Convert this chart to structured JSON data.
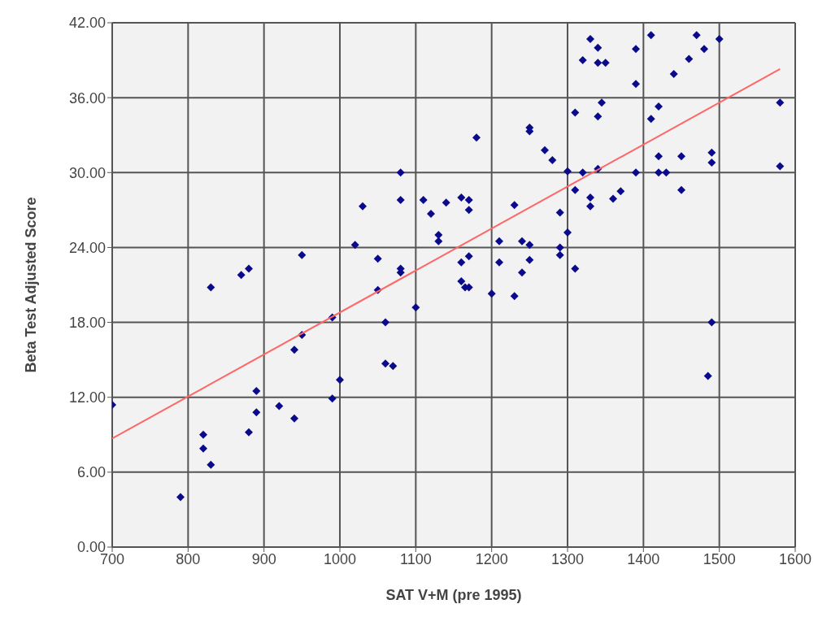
{
  "chart_data": {
    "type": "scatter",
    "xlabel": "SAT V+M (pre 1995)",
    "ylabel": "Beta Test Adjusted Score",
    "xlim": [
      700,
      1600
    ],
    "xticks": [
      700,
      800,
      900,
      1000,
      1100,
      1200,
      1300,
      1400,
      1500,
      1600
    ],
    "ylim": [
      0,
      42
    ],
    "yticks": [
      {
        "value": 0,
        "label": "0.00"
      },
      {
        "value": 6,
        "label": "6.00"
      },
      {
        "value": 12,
        "label": "12.00"
      },
      {
        "value": 18,
        "label": "18.00"
      },
      {
        "value": 24,
        "label": "24.00"
      },
      {
        "value": 30,
        "label": "30.00"
      },
      {
        "value": 36,
        "label": "36.00"
      },
      {
        "value": 42,
        "label": "42.00"
      }
    ],
    "grid": true,
    "legend": false,
    "marker": "diamond",
    "series": [
      {
        "color": "#0a0a8c",
        "x": [
          700,
          790,
          820,
          820,
          830,
          830,
          870,
          880,
          880,
          890,
          890,
          920,
          940,
          940,
          950,
          950,
          990,
          990,
          1000,
          1020,
          1030,
          1050,
          1050,
          1060,
          1060,
          1070,
          1080,
          1080,
          1080,
          1080,
          1100,
          1110,
          1120,
          1130,
          1130,
          1140,
          1160,
          1160,
          1160,
          1165,
          1170,
          1170,
          1170,
          1170,
          1180,
          1200,
          1210,
          1210,
          1230,
          1230,
          1240,
          1240,
          1250,
          1250,
          1250,
          1250,
          1270,
          1280,
          1290,
          1290,
          1290,
          1300,
          1300,
          1310,
          1310,
          1310,
          1320,
          1320,
          1330,
          1330,
          1330,
          1340,
          1340,
          1340,
          1340,
          1345,
          1350,
          1360,
          1370,
          1390,
          1390,
          1390,
          1410,
          1410,
          1420,
          1420,
          1420,
          1430,
          1440,
          1450,
          1450,
          1460,
          1470,
          1480,
          1490,
          1490,
          1490,
          1485,
          1500,
          1580,
          1580
        ],
        "values": [
          11.4,
          4.0,
          9.0,
          7.9,
          6.6,
          20.8,
          21.8,
          22.3,
          9.2,
          10.8,
          12.5,
          11.3,
          10.3,
          15.8,
          17.0,
          23.4,
          11.9,
          18.4,
          13.4,
          24.2,
          27.3,
          20.6,
          23.1,
          18.0,
          14.7,
          14.5,
          30.0,
          27.8,
          22.0,
          22.3,
          19.2,
          27.8,
          26.7,
          24.5,
          25.0,
          27.6,
          28.0,
          22.8,
          21.3,
          20.8,
          27.8,
          27.0,
          23.3,
          20.8,
          32.8,
          20.3,
          24.5,
          22.8,
          27.4,
          20.1,
          24.5,
          22.0,
          33.6,
          33.3,
          24.2,
          23.0,
          31.8,
          31.0,
          26.8,
          24.0,
          23.4,
          30.1,
          25.2,
          34.8,
          28.6,
          22.3,
          39.0,
          30.0,
          40.7,
          28.0,
          27.3,
          40.0,
          38.8,
          34.5,
          30.3,
          35.6,
          38.8,
          27.9,
          28.5,
          39.9,
          37.1,
          30.0,
          41.0,
          34.3,
          35.3,
          31.3,
          30.0,
          30.0,
          37.9,
          31.3,
          28.6,
          39.1,
          41.0,
          39.9,
          31.6,
          30.8,
          18.0,
          13.7,
          40.7,
          35.6,
          30.5
        ]
      },
      {
        "type": "line",
        "marker": "none",
        "color": "#ff6666",
        "x": [
          700,
          1580
        ],
        "values": [
          8.7,
          38.3
        ]
      }
    ]
  }
}
